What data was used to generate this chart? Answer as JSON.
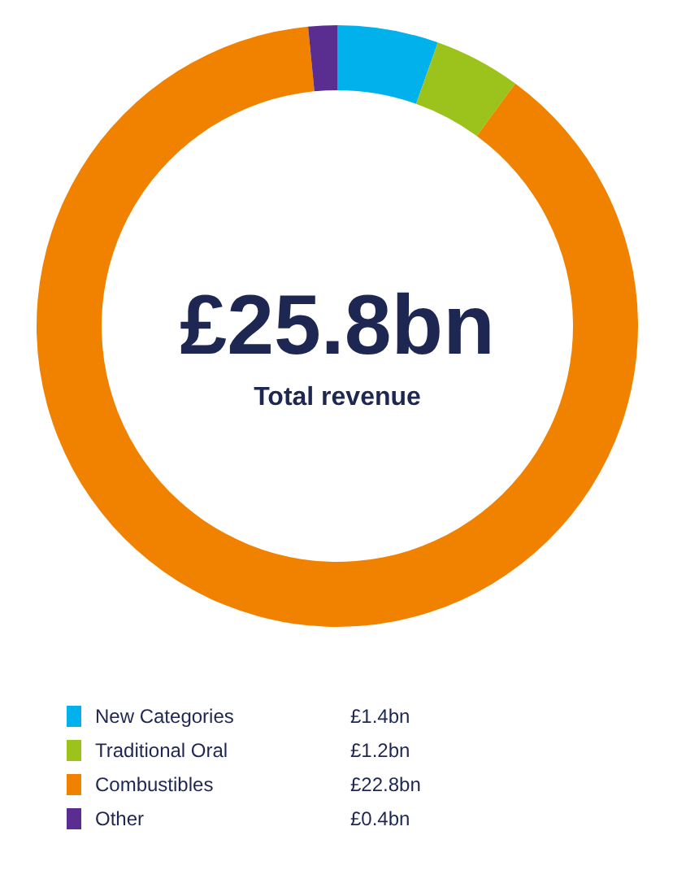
{
  "chart_data": {
    "type": "donut",
    "title": "£25.8bn",
    "subtitle": "Total revenue",
    "categories": [
      "New Categories",
      "Traditional Oral",
      "Combustibles",
      "Other"
    ],
    "values": [
      1.4,
      1.2,
      22.8,
      0.4
    ],
    "colors": [
      "#00b1eb",
      "#9bc31c",
      "#f08200",
      "#5a2d91"
    ],
    "value_labels": [
      "£1.4bn",
      "£1.2bn",
      "£22.8bn",
      "£0.4bn"
    ],
    "legend": "bottom"
  }
}
